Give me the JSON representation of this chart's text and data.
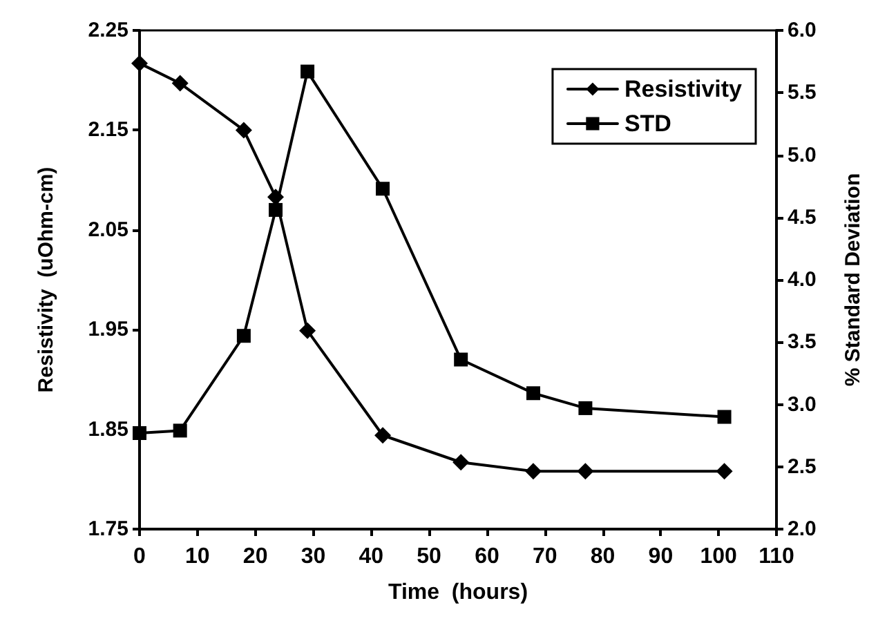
{
  "chart_data": {
    "type": "line",
    "xlabel": "Time  (hours)",
    "ylabel": "Resistivity  (uOhm-cm)",
    "y2label": "% Standard Deviation",
    "x": [
      0,
      7,
      18,
      23.5,
      29,
      42,
      55.5,
      68,
      77,
      101
    ],
    "series": [
      {
        "name": "Resistivity",
        "color": "#000000",
        "marker": "diamond",
        "values": [
          2.217,
          2.197,
          2.15,
          2.083,
          1.949,
          1.844,
          1.817,
          1.808,
          1.808,
          1.808
        ]
      },
      {
        "name": "STD",
        "color": "#000000",
        "marker": "square",
        "axis": "y2",
        "values": [
          2.77,
          2.79,
          3.55,
          4.56,
          5.67,
          4.73,
          3.36,
          3.09,
          2.97,
          2.9
        ]
      }
    ],
    "xlim": [
      0,
      110
    ],
    "xticks": [
      0,
      10,
      20,
      30,
      40,
      50,
      60,
      70,
      80,
      90,
      100,
      110
    ],
    "ylim": [
      1.75,
      2.25
    ],
    "yticks": [
      1.75,
      1.85,
      1.95,
      2.05,
      2.15,
      2.25
    ],
    "y2lim": [
      2.0,
      6.0
    ],
    "y2ticks": [
      {
        "value": 2,
        "label": "2.0"
      },
      {
        "value": 2.5,
        "label": "2.5"
      },
      {
        "value": 3,
        "label": "3.0"
      },
      {
        "value": 3.5,
        "label": "3.5"
      },
      {
        "value": 4,
        "label": "4.0"
      },
      {
        "value": 4.5,
        "label": "4.5"
      },
      {
        "value": 5,
        "label": "5.0"
      },
      {
        "value": 5.5,
        "label": "5.5"
      },
      {
        "value": 6,
        "label": "6.0"
      }
    ],
    "legend": "top right",
    "grid": false,
    "line_style": "solid"
  }
}
